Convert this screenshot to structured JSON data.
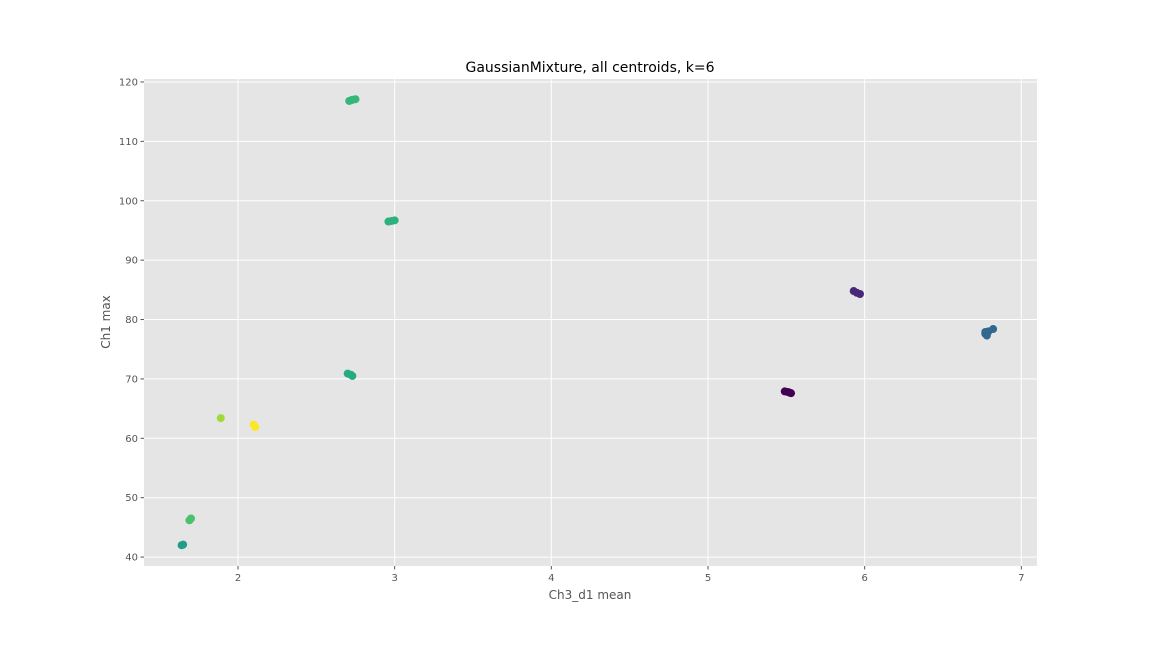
{
  "chart_data": {
    "type": "scatter",
    "title": "GaussianMixture, all centroids, k=6",
    "xlabel": "Ch3_d1 mean",
    "ylabel": "Ch1 max",
    "xlim": [
      1.4,
      7.1
    ],
    "ylim": [
      38.5,
      120.5
    ],
    "xticks": [
      2,
      3,
      4,
      5,
      6,
      7
    ],
    "yticks": [
      40,
      50,
      60,
      70,
      80,
      90,
      100,
      110,
      120
    ],
    "grid": true,
    "legend": "none",
    "colors": {
      "background": "#e5e5e5",
      "grid": "#ffffff",
      "tick": "#555555"
    },
    "points": [
      {
        "x": 5.49,
        "y": 67.9,
        "color": "#440154"
      },
      {
        "x": 5.51,
        "y": 67.8,
        "color": "#440154"
      },
      {
        "x": 5.53,
        "y": 67.6,
        "color": "#440154"
      },
      {
        "x": 5.52,
        "y": 67.7,
        "color": "#440154"
      },
      {
        "x": 5.93,
        "y": 84.8,
        "color": "#482878"
      },
      {
        "x": 5.95,
        "y": 84.5,
        "color": "#482878"
      },
      {
        "x": 5.97,
        "y": 84.3,
        "color": "#482878"
      },
      {
        "x": 6.77,
        "y": 77.9,
        "color": "#31688e"
      },
      {
        "x": 6.78,
        "y": 77.3,
        "color": "#31688e"
      },
      {
        "x": 6.77,
        "y": 77.6,
        "color": "#31688e"
      },
      {
        "x": 6.79,
        "y": 78.0,
        "color": "#31688e"
      },
      {
        "x": 6.82,
        "y": 78.4,
        "color": "#31688e"
      },
      {
        "x": 1.64,
        "y": 42.0,
        "color": "#1f9e89"
      },
      {
        "x": 1.65,
        "y": 42.1,
        "color": "#1f9e89"
      },
      {
        "x": 2.7,
        "y": 70.9,
        "color": "#25ab82"
      },
      {
        "x": 2.72,
        "y": 70.7,
        "color": "#25ab82"
      },
      {
        "x": 2.73,
        "y": 70.5,
        "color": "#25ab82"
      },
      {
        "x": 2.96,
        "y": 96.5,
        "color": "#2db27d"
      },
      {
        "x": 2.98,
        "y": 96.6,
        "color": "#2db27d"
      },
      {
        "x": 3.0,
        "y": 96.7,
        "color": "#2db27d"
      },
      {
        "x": 2.71,
        "y": 116.8,
        "color": "#35b779"
      },
      {
        "x": 2.73,
        "y": 117.0,
        "color": "#35b779"
      },
      {
        "x": 2.75,
        "y": 117.1,
        "color": "#35b779"
      },
      {
        "x": 2.72,
        "y": 116.9,
        "color": "#35b779"
      },
      {
        "x": 1.69,
        "y": 46.2,
        "color": "#4ac16d"
      },
      {
        "x": 1.7,
        "y": 46.5,
        "color": "#4ac16d"
      },
      {
        "x": 1.89,
        "y": 63.4,
        "color": "#a0da39"
      },
      {
        "x": 2.1,
        "y": 62.3,
        "color": "#fde725"
      },
      {
        "x": 2.11,
        "y": 61.9,
        "color": "#fde725"
      }
    ]
  }
}
